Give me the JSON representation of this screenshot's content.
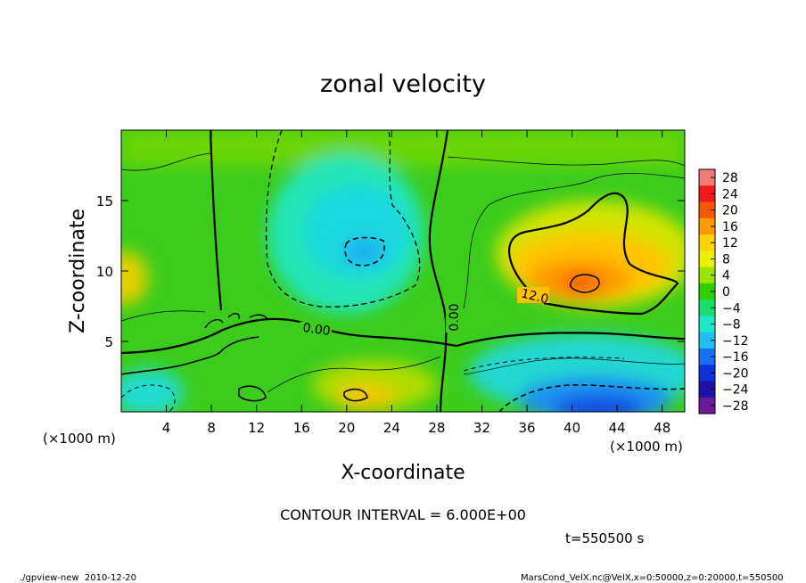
{
  "chart_data": {
    "type": "heatmap",
    "title": "zonal velocity",
    "xlabel": "X-coordinate",
    "ylabel": "Z-coordinate",
    "x_unit_note_left": "(×1000 m)",
    "x_unit_note_right": "(×1000 m)",
    "xlim": [
      0,
      50
    ],
    "ylim": [
      0,
      20
    ],
    "x_ticks": [
      4,
      8,
      12,
      16,
      20,
      24,
      28,
      32,
      36,
      40,
      44,
      48
    ],
    "y_ticks": [
      5,
      10,
      15
    ],
    "colorbar_levels": [
      28,
      24,
      20,
      16,
      12,
      8,
      4,
      0,
      -4,
      -8,
      -12,
      -16,
      -20,
      -24,
      -28
    ],
    "colorbar_labels": [
      "28",
      "24",
      "20",
      "16",
      "12",
      "8",
      "4",
      "0",
      "−4",
      "−8",
      "−12",
      "−16",
      "−20",
      "−24",
      "−28"
    ],
    "colorbar_colors": [
      "#ef7a7a",
      "#f01a1a",
      "#f55a00",
      "#ff9a00",
      "#ffd200",
      "#e9f000",
      "#9ae400",
      "#30d000",
      "#18e070",
      "#1ee8c8",
      "#20c0f0",
      "#1870f0",
      "#1030d8",
      "#2010a8",
      "#6a1a9a"
    ],
    "contour_interval": "CONTOUR INTERVAL = 6.000E+00",
    "contour_labels": [
      "0.00",
      "0.00",
      "12.0"
    ],
    "time_label": "t=550500 s",
    "footer_left": "./gpview-new  2010-12-20",
    "footer_right": "MarsCond_VelX.nc@VelX,x=0:50000,z=0:20000,t=550500",
    "grid": false
  }
}
